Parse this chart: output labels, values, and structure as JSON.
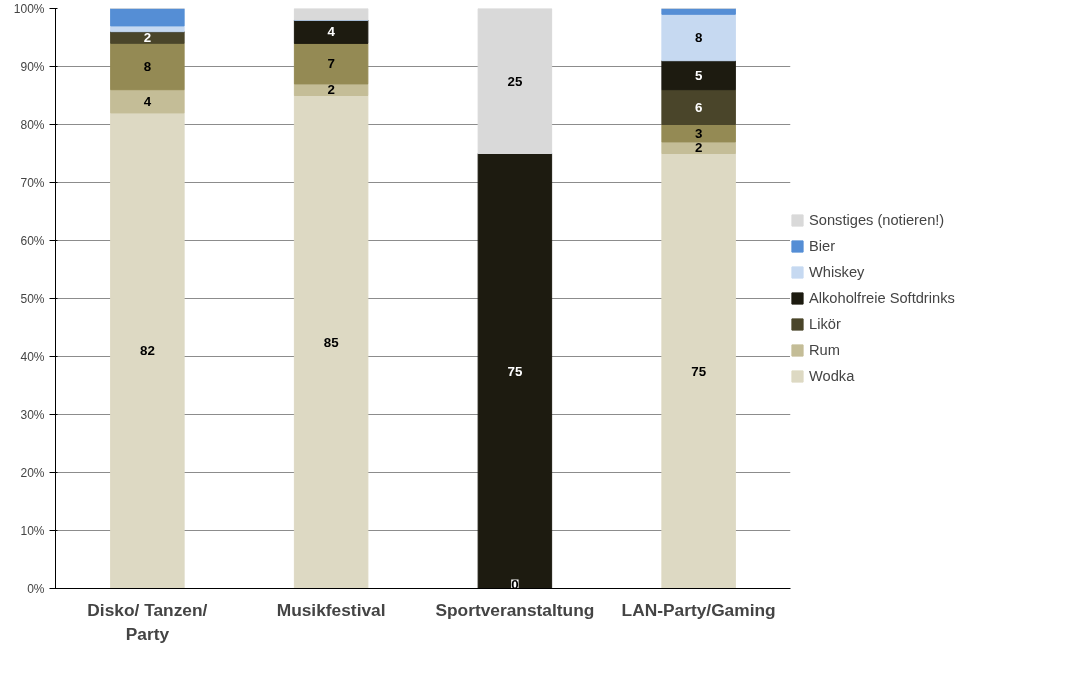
{
  "chart_data": {
    "type": "bar",
    "stacked": true,
    "categories": [
      "Disko/ Tanzen/ Party",
      "Musikfestival",
      "Sportveranstaltung",
      "LAN-Party/Gaming"
    ],
    "series": [
      {
        "name": "Wodka",
        "color": "#ddd9c3",
        "values": [
          82,
          85,
          0,
          75
        ],
        "value_labels": [
          "82",
          "85",
          "0",
          "75"
        ]
      },
      {
        "name": "Rum",
        "color": "#c4bd97",
        "values": [
          4,
          2,
          0,
          2
        ],
        "value_labels": [
          "4",
          "2",
          null,
          "2"
        ]
      },
      {
        "color": "#948a54",
        "values": [
          8,
          7,
          0,
          3
        ],
        "value_labels": [
          "8",
          "7",
          null,
          "3"
        ]
      },
      {
        "name": "Likör",
        "color": "#4a452a",
        "values": [
          2,
          0,
          0,
          6
        ],
        "value_labels": [
          "2",
          null,
          null,
          "6"
        ]
      },
      {
        "name": "Alkoholfreie Softdrinks",
        "color": "#1d1b10",
        "values": [
          0,
          4,
          75,
          5
        ],
        "value_labels": [
          null,
          "4",
          "75",
          "5"
        ]
      },
      {
        "name": "Whiskey",
        "color": "#c6d9f1",
        "values": [
          1,
          0,
          0,
          8
        ],
        "value_labels": [
          null,
          null,
          null,
          "8"
        ]
      },
      {
        "name": "Bier",
        "color": "#558ed5",
        "values": [
          3,
          0,
          0,
          1
        ],
        "value_labels": [
          null,
          null,
          null,
          null
        ]
      },
      {
        "name": "Sonstiges (notieren!)",
        "color": "#d9d9d9",
        "values": [
          0,
          2,
          25,
          0
        ],
        "value_labels": [
          null,
          null,
          "25",
          null
        ]
      }
    ],
    "ylim": [
      0,
      100
    ],
    "yticks": [
      {
        "value": 0,
        "label": "0%"
      },
      {
        "value": 10,
        "label": "10%"
      },
      {
        "value": 20,
        "label": "20%"
      },
      {
        "value": 30,
        "label": "30%"
      },
      {
        "value": 40,
        "label": "40%"
      },
      {
        "value": 50,
        "label": "50%"
      },
      {
        "value": 60,
        "label": "60%"
      },
      {
        "value": 70,
        "label": "70%"
      },
      {
        "value": 80,
        "label": "80%"
      },
      {
        "value": 90,
        "label": "90%"
      },
      {
        "value": 100,
        "label": "100%"
      }
    ],
    "grid": "y",
    "legend": "right"
  }
}
